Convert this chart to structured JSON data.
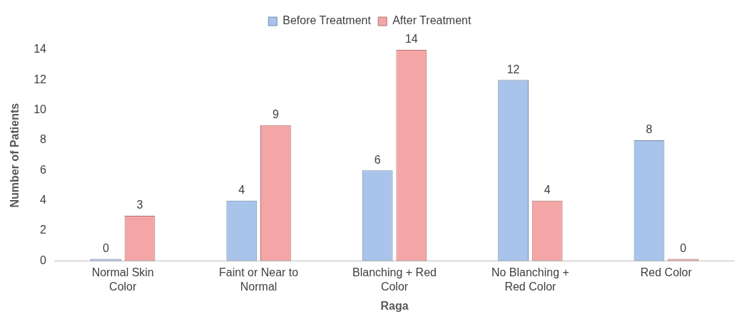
{
  "chart_data": {
    "type": "bar",
    "xlabel": "Raga",
    "ylabel": "Number of Patients",
    "categories": [
      "Normal Skin Color",
      "Faint or Near to Normal",
      "Blanching + Red Color",
      "No Blanching + Red Color",
      "Red Color"
    ],
    "series": [
      {
        "name": "Before Treatment",
        "color": "#a9c4eb",
        "values": [
          0,
          4,
          6,
          12,
          8
        ]
      },
      {
        "name": "After Treatment",
        "color": "#f4a6a6",
        "values": [
          3,
          9,
          14,
          4,
          0
        ]
      }
    ],
    "ylim": [
      0,
      14
    ],
    "yticks": [
      0,
      2,
      4,
      6,
      8,
      10,
      12,
      14
    ],
    "grid": false,
    "legend": "top",
    "data_labels": true
  }
}
